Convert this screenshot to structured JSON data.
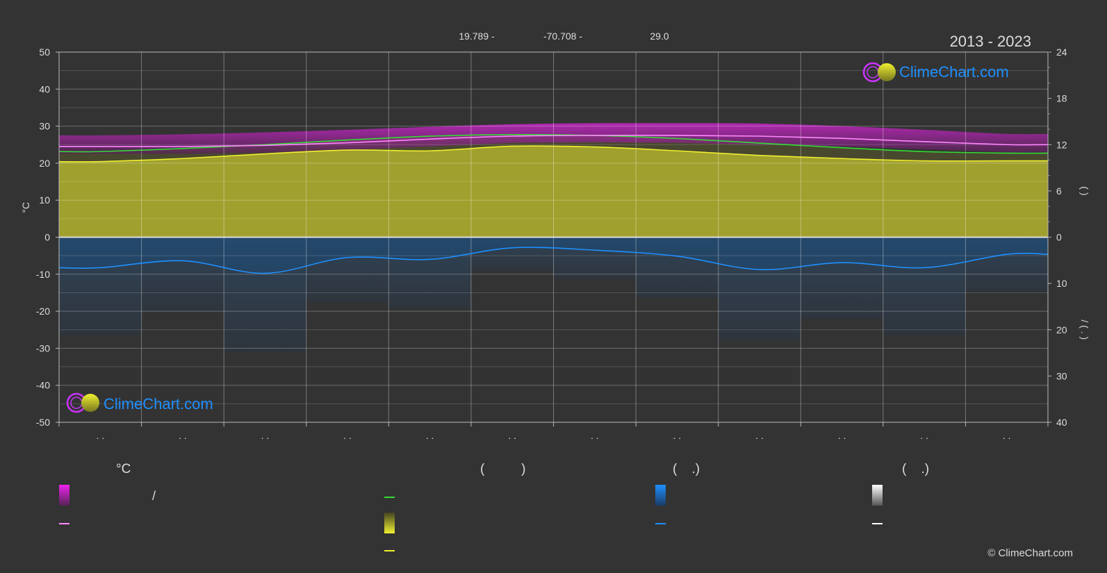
{
  "header": {
    "latitude": "19.789 -",
    "longitude": "-70.708 -",
    "elevation": "29.0",
    "period": "2013 - 2023"
  },
  "logo": {
    "text": "ClimeChart.com"
  },
  "copyright": "© ClimeChart.com",
  "legend": {
    "temp_head": "°C",
    "sun_head": "(          )",
    "rain_head": "(    .)",
    "snow_head": "(    .)",
    "slash": "/"
  },
  "colors": {
    "background": "#333333",
    "temp_band": "#d21fd2",
    "temp_mean": "#ff88ff",
    "daylight": "#33dd33",
    "sunshine": "#d4d434",
    "sunshine_line": "#f0f030",
    "rain": "#1e90ff",
    "snow": "#ffffff"
  },
  "chart_data": {
    "type": "area",
    "months": 12,
    "x_tick_labels": [
      ". .",
      ". .",
      ". .",
      ". .",
      ". .",
      ". .",
      ". .",
      ". .",
      ". .",
      ". .",
      ". .",
      ". ."
    ],
    "y_left": {
      "label": "°C",
      "ylim": [
        -50,
        50
      ],
      "ticks": [
        50,
        40,
        30,
        20,
        10,
        0,
        -10,
        -20,
        -30,
        -40,
        -50
      ]
    },
    "y_right_top": {
      "label": "(      )",
      "range": [
        0,
        24
      ],
      "ticks": [
        24,
        18,
        12,
        6,
        0
      ]
    },
    "y_right_bottom": {
      "label": "/        (  .  )",
      "range": [
        0,
        40
      ],
      "ticks": [
        0,
        10,
        20,
        30,
        40
      ]
    },
    "grid": true,
    "series": [
      {
        "key": "temp_max",
        "values": [
          27.5,
          27.8,
          28.3,
          29.0,
          29.8,
          30.5,
          30.8,
          30.8,
          30.7,
          30.0,
          29.0,
          27.9
        ]
      },
      {
        "key": "temp_min",
        "values": [
          22.5,
          22.5,
          22.8,
          23.6,
          24.5,
          25.5,
          25.6,
          25.5,
          25.0,
          24.5,
          23.8,
          22.9
        ]
      },
      {
        "key": "temp_mean",
        "values": [
          24.5,
          24.5,
          24.8,
          25.5,
          26.5,
          27.3,
          27.5,
          27.5,
          27.3,
          26.7,
          25.8,
          25.0
        ]
      },
      {
        "key": "daylight_hours",
        "values": [
          11.1,
          11.5,
          12.0,
          12.6,
          13.1,
          13.3,
          13.2,
          12.8,
          12.2,
          11.6,
          11.1,
          10.9
        ]
      },
      {
        "key": "sunshine_hours",
        "values": [
          9.8,
          10.2,
          10.8,
          11.3,
          11.2,
          11.8,
          11.7,
          11.2,
          10.6,
          10.2,
          9.9,
          9.9
        ]
      },
      {
        "key": "precipitation_mm",
        "values": [
          6.6,
          5.1,
          7.8,
          4.4,
          4.8,
          2.3,
          2.8,
          4.1,
          7.0,
          5.5,
          6.6,
          3.7
        ]
      }
    ]
  }
}
